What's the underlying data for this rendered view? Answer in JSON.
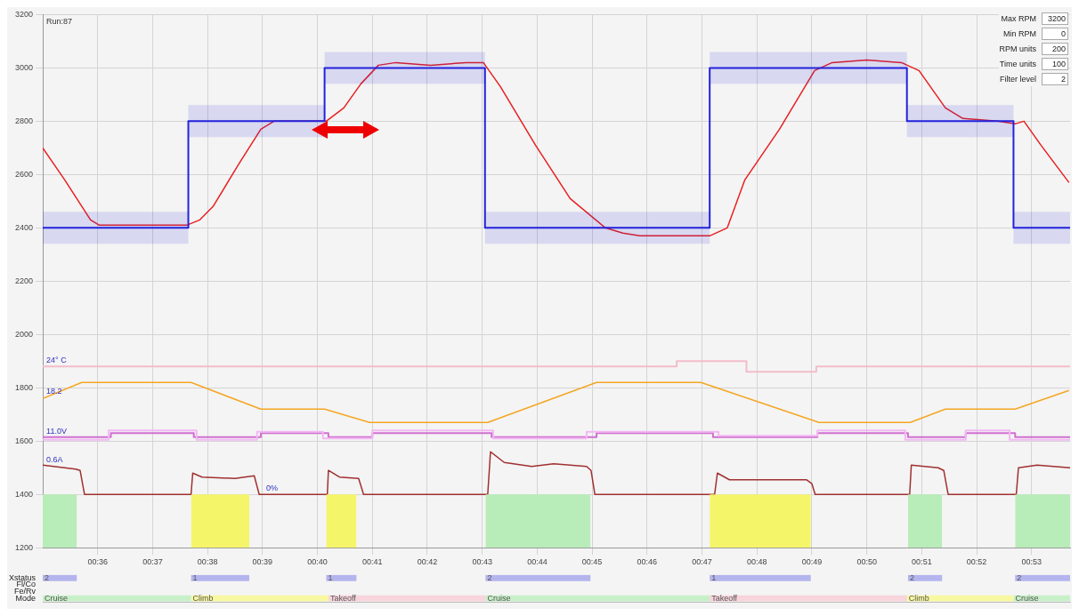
{
  "chart_data": [
    {
      "type": "line",
      "title": "Run:87",
      "xlim": [
        35,
        53.7
      ],
      "xticks": [
        {
          "value": 36,
          "label": "00:36"
        },
        {
          "value": 37,
          "label": "00:37"
        },
        {
          "value": 38,
          "label": "00:38"
        },
        {
          "value": 39,
          "label": "00:39"
        },
        {
          "value": 40,
          "label": "00:40"
        },
        {
          "value": 41,
          "label": "00:41"
        },
        {
          "value": 42,
          "label": "00:42"
        },
        {
          "value": 43,
          "label": "00:43"
        },
        {
          "value": 44,
          "label": "00:44"
        },
        {
          "value": 45,
          "label": "00:45"
        },
        {
          "value": 46,
          "label": "00:46"
        },
        {
          "value": 47,
          "label": "00:47"
        },
        {
          "value": 48,
          "label": "00:48"
        },
        {
          "value": 49,
          "label": "00:49"
        },
        {
          "value": 50,
          "label": "00:50"
        },
        {
          "value": 51,
          "label": "00:51"
        },
        {
          "value": 52,
          "label": "00:52"
        },
        {
          "value": 53,
          "label": "00:53"
        }
      ],
      "ylim": [
        1200,
        3200
      ],
      "yticks": [
        1200,
        1400,
        1600,
        1800,
        2000,
        2200,
        2400,
        2600,
        2800,
        3000,
        3200
      ],
      "grid": true,
      "legend": false,
      "marker": "none",
      "line_style": "solid",
      "series": [
        {
          "type": "area",
          "color": "#b8ecb8",
          "x": [
            35,
            35.62,
            35.63,
            43.06,
            44.97,
            44.98,
            50.75,
            51.37,
            51.38,
            52.7,
            53.7
          ],
          "values": [
            1400,
            1400,
            null,
            1400,
            1400,
            null,
            1400,
            1400,
            null,
            1400,
            1400
          ]
        },
        {
          "type": "area",
          "color": "#f5f56a",
          "x": [
            37.7,
            38.76,
            38.77,
            40.16,
            40.71,
            40.72,
            47.14,
            48.98
          ],
          "values": [
            1400,
            1400,
            null,
            1400,
            1400,
            null,
            1400,
            1400
          ]
        },
        {
          "type": "step",
          "color": "#2222dd",
          "x": [
            35,
            37.65,
            40.13,
            43.05,
            47.14,
            50.73,
            52.67,
            53.7
          ],
          "values": [
            2400,
            2800,
            3000,
            2400,
            3000,
            2800,
            2400,
            2400
          ],
          "lower": [
            2340,
            2740,
            2940,
            2340,
            2940,
            2740,
            2340,
            2340
          ],
          "upper": [
            2460,
            2860,
            3060,
            2460,
            3060,
            2860,
            2460,
            2460
          ]
        },
        {
          "type": "line",
          "color": "#e82020",
          "x": [
            35,
            35.4,
            35.87,
            36.03,
            36.83,
            37.62,
            37.86,
            38.1,
            38.57,
            38.97,
            39.21,
            39.84,
            40.16,
            40.48,
            40.79,
            41.11,
            41.43,
            42.06,
            42.7,
            43.02,
            43.33,
            43.97,
            44.6,
            45.24,
            45.56,
            45.87,
            46.51,
            47.14,
            47.46,
            47.78,
            48.41,
            49.05,
            49.37,
            50,
            50.63,
            50.95,
            51.43,
            51.75,
            52.38,
            52.7,
            52.86,
            53.17,
            53.68
          ],
          "values": [
            2700,
            2580,
            2430,
            2410,
            2410,
            2410,
            2430,
            2480,
            2640,
            2770,
            2800,
            2800,
            2800,
            2850,
            2940,
            3010,
            3020,
            3010,
            3020,
            3020,
            2930,
            2710,
            2510,
            2400,
            2380,
            2370,
            2370,
            2370,
            2400,
            2580,
            2770,
            2990,
            3020,
            3030,
            3020,
            2990,
            2850,
            2810,
            2800,
            2790,
            2800,
            2710,
            2570
          ]
        },
        {
          "type": "step",
          "color": "#f4bccb",
          "x": [
            35,
            46.54,
            47.81,
            49.08,
            53.7
          ],
          "values": [
            1880,
            1900,
            1860,
            1880,
            1880
          ]
        },
        {
          "type": "line",
          "color": "#f5a623",
          "x": [
            35,
            35.71,
            37.7,
            38.97,
            40.13,
            40.95,
            43.1,
            45.08,
            46.98,
            49.13,
            50.79,
            51.43,
            52.7,
            53.68
          ],
          "values": [
            1760,
            1820,
            1820,
            1720,
            1720,
            1670,
            1670,
            1820,
            1820,
            1670,
            1670,
            1720,
            1720,
            1790
          ]
        },
        {
          "type": "step",
          "color": "#f2b8f2",
          "x": [
            35,
            36.2,
            37.8,
            38.9,
            40.1,
            41,
            43.2,
            44.9,
            47.3,
            49.1,
            50.7,
            51.8,
            52.6,
            53.7
          ],
          "values": [
            1605,
            1640,
            1605,
            1635,
            1610,
            1640,
            1610,
            1635,
            1620,
            1640,
            1605,
            1640,
            1605,
            1605
          ]
        },
        {
          "type": "step",
          "color": "#d070d0",
          "x": [
            35,
            36.24,
            37.75,
            38.97,
            40.2,
            41,
            43.17,
            45.08,
            47.2,
            49.1,
            50.75,
            51.8,
            52.7,
            53.7
          ],
          "values": [
            1615,
            1630,
            1615,
            1630,
            1615,
            1630,
            1615,
            1630,
            1615,
            1630,
            1615,
            1630,
            1615,
            1615
          ]
        },
        {
          "type": "line",
          "color": "#a03030",
          "x": [
            35,
            35.6,
            35.68,
            35.76,
            37.7,
            37.73,
            37.9,
            38.5,
            38.85,
            38.94,
            40.18,
            40.2,
            40.4,
            40.75,
            40.84,
            43.1,
            43.15,
            43.4,
            43.9,
            44.3,
            44.9,
            44.98,
            45.05,
            47.23,
            47.28,
            47.5,
            48.3,
            48.9,
            49,
            49.06,
            50.78,
            50.81,
            51.3,
            51.4,
            51.48,
            52.72,
            52.76,
            53.1,
            53.7
          ],
          "values": [
            1510,
            1495,
            1490,
            1400,
            1400,
            1480,
            1465,
            1460,
            1470,
            1400,
            1400,
            1490,
            1465,
            1460,
            1400,
            1400,
            1560,
            1520,
            1505,
            1515,
            1505,
            1490,
            1400,
            1400,
            1480,
            1455,
            1455,
            1455,
            1440,
            1400,
            1400,
            1510,
            1500,
            1490,
            1400,
            1400,
            1500,
            1510,
            1500
          ]
        }
      ],
      "annotations": [
        {
          "text": "24° C",
          "x": 35.05,
          "y": 1880
        },
        {
          "text": "18.2",
          "x": 35.05,
          "y": 1764
        },
        {
          "text": "11.0V",
          "x": 35.05,
          "y": 1615
        },
        {
          "text": "0.6A",
          "x": 35.05,
          "y": 1509
        },
        {
          "text": "0%",
          "x": 39.05,
          "y": 1400
        }
      ]
    },
    {
      "type": "bar",
      "orientation": "horizontal",
      "categories": [
        "Xstatus",
        "Fl/Co",
        "Fe/Rv",
        "Mode"
      ],
      "xlim": [
        35,
        53.7
      ],
      "tick_labels": "y",
      "legend": false,
      "series": [
        {
          "values": [
            0.62,
            null,
            null,
            2.7
          ],
          "base": [
            35,
            null,
            null,
            35
          ],
          "colors": [
            "#b4b4ee",
            null,
            null,
            "#c8f0c8"
          ]
        },
        {
          "values": [
            1.06,
            null,
            null,
            2.5
          ],
          "base": [
            37.7,
            null,
            null,
            37.7
          ],
          "colors": [
            "#b4b4ee",
            null,
            null,
            "#f8f8a0"
          ]
        },
        {
          "values": [
            0.55,
            null,
            null,
            2.86
          ],
          "base": [
            40.16,
            null,
            null,
            40.2
          ],
          "colors": [
            "#b4b4ee",
            null,
            null,
            "#f8d4dc"
          ]
        },
        {
          "values": [
            1.91,
            null,
            null,
            4.08
          ],
          "base": [
            43.06,
            null,
            null,
            43.06
          ],
          "colors": [
            "#b4b4ee",
            null,
            null,
            "#c8f0c8"
          ]
        },
        {
          "values": [
            1.84,
            null,
            null,
            3.59
          ],
          "base": [
            47.14,
            null,
            null,
            47.14
          ],
          "colors": [
            "#b4b4ee",
            null,
            null,
            "#f8d4dc"
          ]
        },
        {
          "values": [
            0.62,
            null,
            null,
            1.94
          ],
          "base": [
            50.75,
            null,
            null,
            50.73
          ],
          "colors": [
            "#b4b4ee",
            null,
            null,
            "#f8f8a0"
          ]
        },
        {
          "values": [
            1.0,
            null,
            null,
            1.03
          ],
          "base": [
            52.7,
            null,
            null,
            52.67
          ],
          "colors": [
            "#b4b4ee",
            null,
            null,
            "#c8f0c8"
          ]
        }
      ],
      "annotations": [
        {
          "text": "2",
          "x": 35,
          "y": "Xstatus"
        },
        {
          "text": "1",
          "x": 37.7,
          "y": "Xstatus"
        },
        {
          "text": "1",
          "x": 40.16,
          "y": "Xstatus"
        },
        {
          "text": "2",
          "x": 43.06,
          "y": "Xstatus"
        },
        {
          "text": "1",
          "x": 47.14,
          "y": "Xstatus"
        },
        {
          "text": "2",
          "x": 50.75,
          "y": "Xstatus"
        },
        {
          "text": "2",
          "x": 52.7,
          "y": "Xstatus"
        },
        {
          "text": "Cruise",
          "x": 35,
          "y": "Mode"
        },
        {
          "text": "Climb",
          "x": 37.7,
          "y": "Mode"
        },
        {
          "text": "Takeoff",
          "x": 40.2,
          "y": "Mode"
        },
        {
          "text": "Cruise",
          "x": 43.06,
          "y": "Mode"
        },
        {
          "text": "Takeoff",
          "x": 47.14,
          "y": "Mode"
        },
        {
          "text": "Climb",
          "x": 50.73,
          "y": "Mode"
        },
        {
          "text": "Cruise",
          "x": 52.67,
          "y": "Mode"
        }
      ]
    },
    {
      "type": "other",
      "annotations": [
        "Max RPM",
        "3200",
        "Min RPM",
        "0",
        "RPM units",
        "200",
        "Time units",
        "100",
        "Filter level",
        "2"
      ]
    }
  ]
}
